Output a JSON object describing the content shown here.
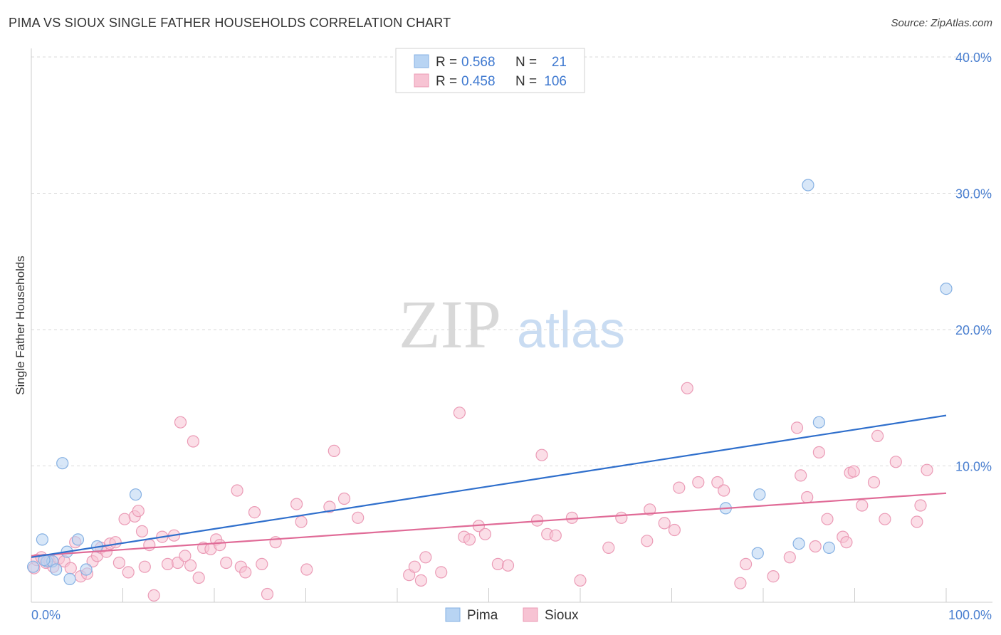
{
  "title": "PIMA VS SIOUX SINGLE FATHER HOUSEHOLDS CORRELATION CHART",
  "source": "Source: ZipAtlas.com",
  "colors": {
    "pima_fill": "#b8d4f3",
    "pima_stroke": "#86b1e3",
    "pima_line": "#2f6fcc",
    "sioux_fill": "#f7c3d3",
    "sioux_stroke": "#eb9bb6",
    "sioux_line": "#e06b97",
    "axis_text": "#4a7fd0",
    "grid": "#d9d9d9",
    "watermark_zip": "#d8d8d8",
    "watermark_atlas": "#c9dcf2"
  },
  "watermark": {
    "zip": "ZIP",
    "atlas": "atlas"
  },
  "legend_box": {
    "rows": [
      {
        "r_label": "R =",
        "r_value": "0.568",
        "n_label": "N =",
        "n_value": "21"
      },
      {
        "r_label": "R =",
        "r_value": "0.458",
        "n_label": "N =",
        "n_value": "106"
      }
    ]
  },
  "chart_data": {
    "type": "scatter",
    "title": "PIMA VS SIOUX SINGLE FATHER HOUSEHOLDS CORRELATION CHART",
    "xlabel": "",
    "ylabel": "Single Father Households",
    "xlim": [
      0,
      100
    ],
    "ylim": [
      0,
      40
    ],
    "x_tick_labels": [
      {
        "value": 0,
        "label": "0.0%"
      },
      {
        "value": 100,
        "label": "100.0%"
      }
    ],
    "y_tick_labels": [
      {
        "value": 10,
        "label": "10.0%"
      },
      {
        "value": 20,
        "label": "20.0%"
      },
      {
        "value": 30,
        "label": "30.0%"
      },
      {
        "value": 40,
        "label": "40.0%"
      }
    ],
    "x_minor_ticks": [
      0,
      10,
      20,
      30,
      40,
      50,
      60,
      70,
      80,
      90,
      100
    ],
    "legend": [
      "Pima",
      "Sioux"
    ],
    "legend_position": "bottom-center",
    "series": [
      {
        "name": "Pima",
        "r": 0.568,
        "n": 21,
        "trend": {
          "x": [
            0,
            100
          ],
          "y": [
            3.3,
            13.7
          ]
        },
        "points": [
          [
            0.2,
            2.6
          ],
          [
            1.2,
            4.6
          ],
          [
            1.7,
            3.0
          ],
          [
            2.3,
            3.0
          ],
          [
            2.7,
            2.4
          ],
          [
            3.4,
            10.2
          ],
          [
            3.9,
            3.7
          ],
          [
            4.2,
            1.7
          ],
          [
            5.1,
            4.6
          ],
          [
            6.0,
            2.4
          ],
          [
            7.2,
            4.1
          ],
          [
            11.4,
            7.9
          ],
          [
            75.9,
            6.9
          ],
          [
            79.6,
            7.9
          ],
          [
            79.4,
            3.6
          ],
          [
            83.9,
            4.3
          ],
          [
            84.9,
            30.6
          ],
          [
            86.1,
            13.2
          ],
          [
            87.2,
            4.0
          ],
          [
            100.0,
            23.0
          ],
          [
            1.4,
            3.1
          ]
        ]
      },
      {
        "name": "Sioux",
        "r": 0.458,
        "n": 106,
        "trend": {
          "x": [
            0,
            100
          ],
          "y": [
            3.4,
            8.0
          ]
        },
        "points": [
          [
            0.3,
            2.5
          ],
          [
            0.6,
            3.1
          ],
          [
            1.1,
            3.3
          ],
          [
            1.6,
            2.9
          ],
          [
            2.0,
            3.0
          ],
          [
            2.4,
            2.6
          ],
          [
            3.0,
            3.2
          ],
          [
            3.6,
            3.0
          ],
          [
            4.3,
            2.5
          ],
          [
            4.8,
            4.4
          ],
          [
            5.4,
            1.9
          ],
          [
            6.1,
            2.1
          ],
          [
            6.7,
            3.0
          ],
          [
            7.2,
            3.4
          ],
          [
            7.6,
            4.0
          ],
          [
            8.2,
            3.7
          ],
          [
            8.6,
            4.3
          ],
          [
            9.2,
            4.4
          ],
          [
            9.6,
            2.9
          ],
          [
            10.2,
            6.1
          ],
          [
            10.6,
            2.2
          ],
          [
            11.3,
            6.3
          ],
          [
            11.7,
            6.7
          ],
          [
            12.1,
            5.2
          ],
          [
            12.4,
            2.6
          ],
          [
            12.9,
            4.2
          ],
          [
            13.4,
            0.5
          ],
          [
            14.3,
            4.8
          ],
          [
            14.9,
            2.8
          ],
          [
            15.6,
            4.9
          ],
          [
            16.0,
            2.9
          ],
          [
            16.3,
            13.2
          ],
          [
            16.8,
            3.4
          ],
          [
            17.4,
            2.7
          ],
          [
            17.7,
            11.8
          ],
          [
            18.3,
            1.8
          ],
          [
            18.8,
            4.0
          ],
          [
            19.6,
            3.9
          ],
          [
            20.2,
            4.6
          ],
          [
            20.6,
            4.2
          ],
          [
            21.3,
            2.9
          ],
          [
            22.5,
            8.2
          ],
          [
            22.9,
            2.6
          ],
          [
            23.4,
            2.2
          ],
          [
            24.4,
            6.6
          ],
          [
            25.2,
            2.8
          ],
          [
            25.8,
            0.6
          ],
          [
            26.7,
            4.4
          ],
          [
            29.0,
            7.2
          ],
          [
            29.5,
            5.9
          ],
          [
            30.1,
            2.4
          ],
          [
            32.6,
            7.0
          ],
          [
            33.1,
            11.1
          ],
          [
            34.2,
            7.6
          ],
          [
            35.7,
            6.2
          ],
          [
            41.3,
            2.0
          ],
          [
            41.9,
            2.6
          ],
          [
            42.6,
            1.6
          ],
          [
            43.1,
            3.3
          ],
          [
            44.8,
            2.2
          ],
          [
            46.8,
            13.9
          ],
          [
            47.3,
            4.8
          ],
          [
            47.9,
            4.6
          ],
          [
            48.9,
            5.6
          ],
          [
            49.6,
            5.0
          ],
          [
            51.0,
            2.8
          ],
          [
            52.1,
            2.7
          ],
          [
            55.3,
            6.0
          ],
          [
            55.8,
            10.8
          ],
          [
            56.4,
            5.0
          ],
          [
            57.3,
            4.9
          ],
          [
            59.1,
            6.2
          ],
          [
            60.0,
            1.6
          ],
          [
            63.1,
            4.0
          ],
          [
            64.5,
            6.2
          ],
          [
            67.3,
            4.5
          ],
          [
            67.6,
            6.8
          ],
          [
            69.2,
            5.8
          ],
          [
            70.3,
            5.3
          ],
          [
            70.8,
            8.4
          ],
          [
            71.7,
            15.7
          ],
          [
            72.9,
            8.8
          ],
          [
            75.0,
            8.8
          ],
          [
            75.7,
            8.2
          ],
          [
            77.5,
            1.4
          ],
          [
            78.1,
            2.8
          ],
          [
            81.1,
            1.9
          ],
          [
            82.9,
            3.3
          ],
          [
            83.7,
            12.8
          ],
          [
            84.1,
            9.3
          ],
          [
            84.8,
            7.7
          ],
          [
            85.7,
            4.1
          ],
          [
            86.1,
            11.0
          ],
          [
            87.0,
            6.1
          ],
          [
            88.7,
            4.8
          ],
          [
            89.1,
            4.4
          ],
          [
            89.5,
            9.5
          ],
          [
            89.9,
            9.6
          ],
          [
            90.8,
            7.1
          ],
          [
            92.1,
            8.8
          ],
          [
            92.5,
            12.2
          ],
          [
            93.3,
            6.1
          ],
          [
            94.5,
            10.3
          ],
          [
            96.8,
            5.9
          ],
          [
            97.2,
            7.1
          ],
          [
            97.9,
            9.7
          ]
        ]
      }
    ]
  }
}
